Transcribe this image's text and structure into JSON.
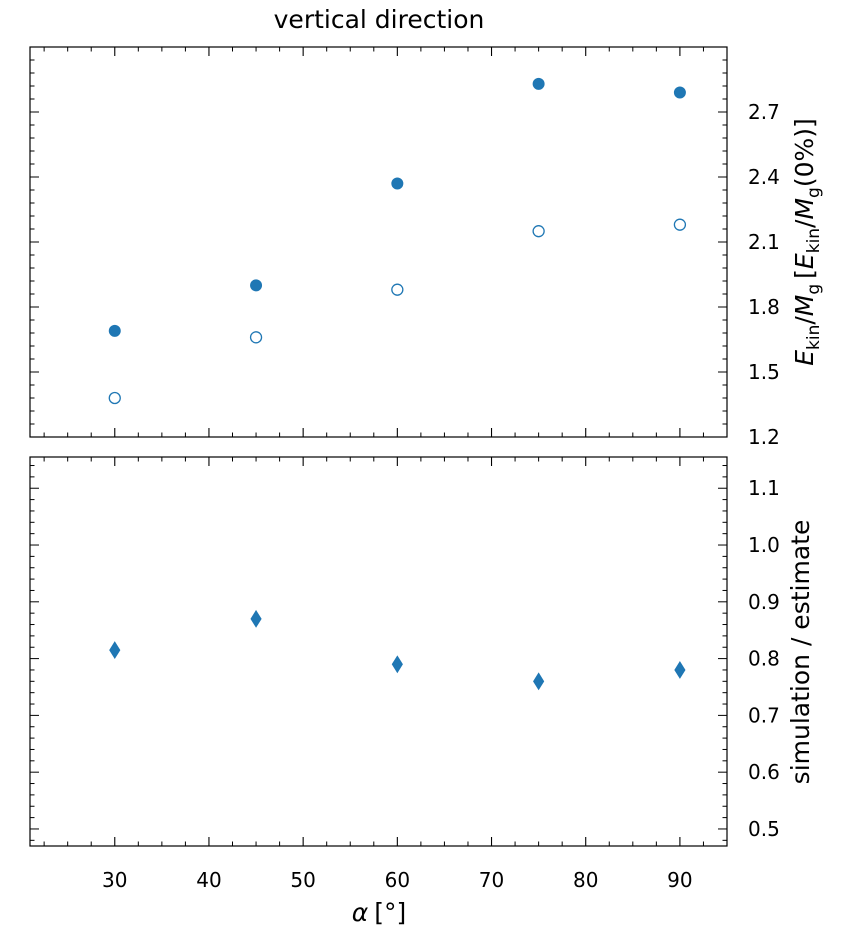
{
  "title": "vertical direction",
  "colors": {
    "series": "#1f77b4",
    "axes": "#000000",
    "background": "#ffffff"
  },
  "chart_data": [
    {
      "type": "scatter",
      "panel": "top",
      "x": [
        30,
        45,
        60,
        75,
        90
      ],
      "series": [
        {
          "values": [
            1.69,
            1.9,
            2.37,
            2.83,
            2.79
          ],
          "marker": "filled-circle",
          "color": "#1f77b4"
        },
        {
          "values": [
            1.38,
            1.66,
            1.88,
            2.15,
            2.18
          ],
          "marker": "open-circle",
          "color": "#1f77b4"
        }
      ],
      "xlim": [
        21,
        95
      ],
      "ylim": [
        1.2,
        3.0
      ],
      "yticks": [
        1.2,
        1.5,
        1.8,
        2.1,
        2.4,
        2.7
      ],
      "ytick_labels": [
        "1.2",
        "1.5",
        "1.8",
        "2.1",
        "2.4",
        "2.7"
      ],
      "ylabel_parts": {
        "E": "E",
        "kin": "kin",
        "slash": "/",
        "M": "M",
        "g": "g",
        "bracket_open": "[",
        "zero": "(0%)",
        "bracket_close": "]"
      },
      "y_axis_side": "right",
      "grid": false
    },
    {
      "type": "scatter",
      "panel": "bottom",
      "x": [
        30,
        45,
        60,
        75,
        90
      ],
      "series": [
        {
          "values": [
            0.815,
            0.87,
            0.79,
            0.76,
            0.78
          ],
          "marker": "thin-diamond",
          "color": "#1f77b4"
        }
      ],
      "xlim": [
        21,
        95
      ],
      "ylim": [
        0.47,
        1.155
      ],
      "xticks": [
        30,
        40,
        50,
        60,
        70,
        80,
        90
      ],
      "xtick_labels": [
        "30",
        "40",
        "50",
        "60",
        "70",
        "80",
        "90"
      ],
      "yticks": [
        0.5,
        0.6,
        0.7,
        0.8,
        0.9,
        1.0,
        1.1
      ],
      "ytick_labels": [
        "0.5",
        "0.6",
        "0.7",
        "0.8",
        "0.9",
        "1.0",
        "1.1"
      ],
      "ylabel": "simulation / estimate",
      "xlabel_parts": {
        "alpha": "α",
        "unit": "[°]"
      },
      "y_axis_side": "right",
      "grid": false
    }
  ]
}
